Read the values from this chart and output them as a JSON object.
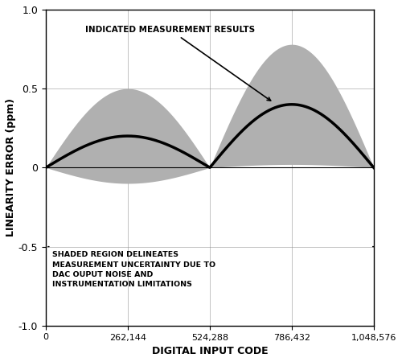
{
  "x_min": 0,
  "x_max": 1048576,
  "y_min": -1.0,
  "y_max": 1.0,
  "x_ticks": [
    0,
    262144,
    524288,
    786432,
    1048576
  ],
  "x_tick_labels": [
    "0",
    "262,144",
    "524,288",
    "786,432",
    "1,048,576"
  ],
  "y_ticks": [
    -1.0,
    -0.5,
    0,
    0.5,
    1.0
  ],
  "xlabel": "DIGITAL INPUT CODE",
  "ylabel": "LINEARITY ERROR (ppm)",
  "shaded_color": "#b0b0b0",
  "curve_color": "#000000",
  "background_color": "#ffffff",
  "annotation_text1": "INDICATED MEASUREMENT RESULTS",
  "annotation_text2": "SHADED REGION DELINEATES\nMEASUREMENT UNCERTAINTY DUE TO\nDAC OUPUT NOISE AND\nINSTRUMENTATION LIMITATIONS",
  "curve_peak1_y": 0.2,
  "curve_peak2_y": 0.4,
  "band_half1": 0.3,
  "band_half2": 0.38
}
